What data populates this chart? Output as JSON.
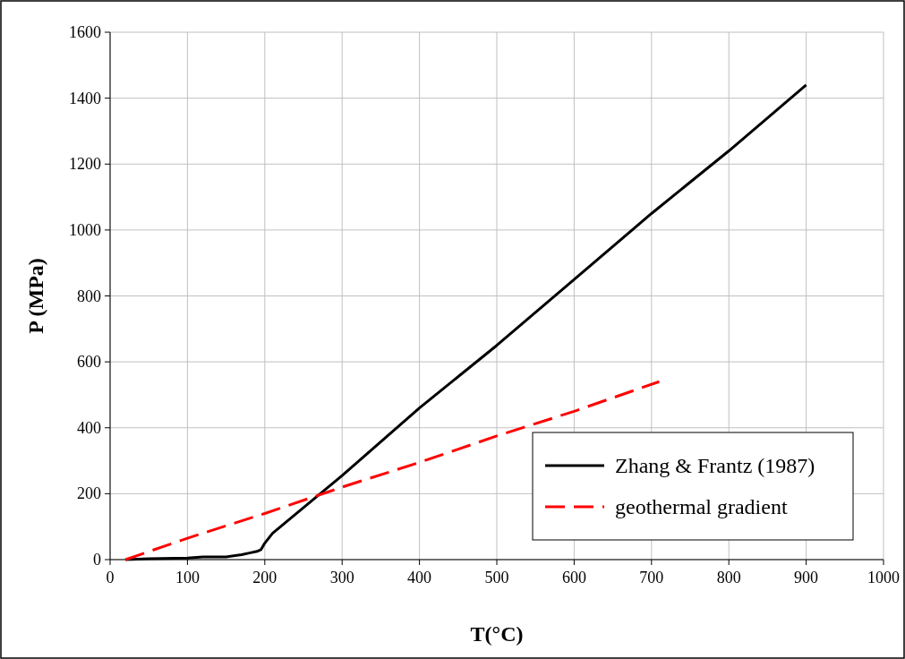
{
  "chart_data": {
    "type": "line",
    "xlabel": "T(°C)",
    "ylabel": "P (MPa)",
    "xlim": [
      0,
      1000
    ],
    "xticks": [
      0,
      100,
      200,
      300,
      400,
      500,
      600,
      700,
      800,
      900,
      1000
    ],
    "ylim": [
      0,
      1600
    ],
    "yticks": [
      0,
      200,
      400,
      600,
      800,
      1000,
      1200,
      1400,
      1600
    ],
    "grid": true,
    "legend": "bottom right",
    "series": [
      {
        "name": "Zhang & Frantz (1987)",
        "color": "#000000",
        "line_style": "solid",
        "x": [
          20,
          50,
          100,
          120,
          150,
          170,
          180,
          190,
          195,
          200,
          210,
          300,
          400,
          500,
          600,
          700,
          800,
          900
        ],
        "values": [
          0,
          3,
          5,
          8,
          8,
          15,
          20,
          25,
          30,
          50,
          80,
          255,
          460,
          650,
          850,
          1050,
          1240,
          1440
        ]
      },
      {
        "name": "geothermal gradient",
        "color": "#ff0000",
        "line_style": "dashed",
        "x": [
          20,
          100,
          200,
          300,
          400,
          500,
          600,
          710
        ],
        "values": [
          0,
          65,
          140,
          220,
          295,
          375,
          450,
          540
        ]
      }
    ]
  }
}
